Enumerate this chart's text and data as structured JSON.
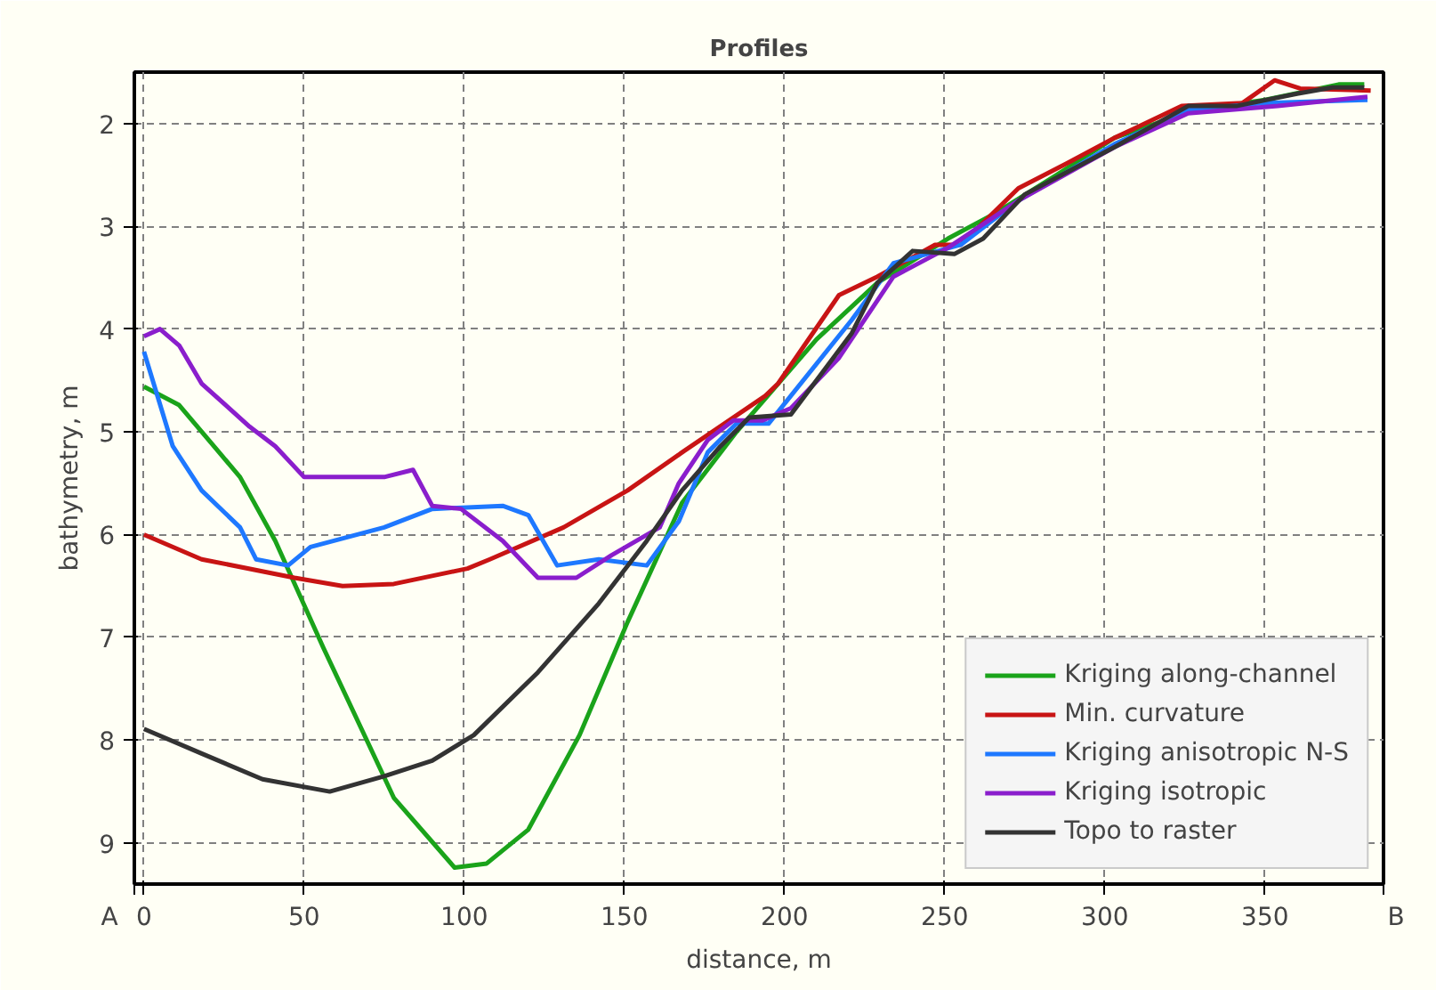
{
  "chart_data": {
    "type": "line",
    "title": "Profiles",
    "xlabel": "distance, m",
    "ylabel": "bathymetry, m",
    "annotations": [
      "A",
      "B"
    ],
    "xlim": [
      -3,
      387
    ],
    "ylim": [
      9.4,
      1.5
    ],
    "xticks": [
      0,
      50,
      100,
      150,
      200,
      250,
      300,
      350
    ],
    "yticks": [
      2,
      3,
      4,
      5,
      6,
      7,
      8,
      9
    ],
    "grid": true,
    "legend": "bottom right",
    "line_style": "solid",
    "series": [
      {
        "name": "Kriging along-channel",
        "color": "#1aa31a",
        "x": [
          0,
          11,
          30,
          41,
          56,
          78,
          97,
          107,
          120,
          136,
          151,
          168,
          185,
          210,
          229,
          251,
          266,
          285,
          303,
          328,
          350,
          373,
          381
        ],
        "values": [
          4.56,
          4.74,
          5.44,
          6.06,
          7.1,
          8.56,
          9.24,
          9.2,
          8.87,
          7.95,
          6.85,
          5.69,
          5.0,
          4.1,
          3.55,
          3.12,
          2.87,
          2.5,
          2.14,
          1.87,
          1.77,
          1.62,
          1.62
        ]
      },
      {
        "name": "Min. curvature",
        "color": "#c81414",
        "x": [
          0,
          18,
          47,
          62,
          78,
          101,
          108,
          131,
          151,
          168,
          194,
          198,
          217,
          229,
          247,
          255,
          273,
          288,
          303,
          324,
          343,
          353,
          361,
          383
        ],
        "values": [
          6.0,
          6.24,
          6.42,
          6.5,
          6.48,
          6.33,
          6.24,
          5.93,
          5.57,
          5.2,
          4.65,
          4.53,
          3.67,
          3.49,
          3.18,
          3.18,
          2.63,
          2.39,
          2.14,
          1.83,
          1.8,
          1.58,
          1.66,
          1.68
        ]
      },
      {
        "name": "Kriging anisotropic N-S",
        "color": "#1e78ff",
        "x": [
          0,
          9,
          18,
          30,
          35,
          45,
          52,
          75,
          90,
          112,
          120,
          129,
          142,
          157,
          167,
          176,
          185,
          195,
          221,
          234,
          255,
          273,
          303,
          326,
          350,
          382
        ],
        "values": [
          4.22,
          5.14,
          5.57,
          5.93,
          6.24,
          6.3,
          6.12,
          5.93,
          5.75,
          5.72,
          5.81,
          6.3,
          6.24,
          6.3,
          5.87,
          5.2,
          4.92,
          4.92,
          3.91,
          3.36,
          3.18,
          2.75,
          2.2,
          1.87,
          1.8,
          1.77
        ]
      },
      {
        "name": "Kriging isotropic",
        "color": "#8a1ecc",
        "x": [
          0,
          5,
          11,
          18,
          33,
          41,
          50,
          75,
          84,
          90,
          99,
          112,
          123,
          135,
          146,
          161,
          167,
          176,
          184,
          193,
          202,
          217,
          234,
          251,
          273,
          303,
          326,
          354,
          382
        ],
        "values": [
          4.07,
          4.0,
          4.16,
          4.53,
          4.95,
          5.14,
          5.44,
          5.44,
          5.37,
          5.72,
          5.75,
          6.06,
          6.42,
          6.42,
          6.2,
          5.93,
          5.5,
          5.08,
          4.89,
          4.89,
          4.77,
          4.28,
          3.49,
          3.21,
          2.75,
          2.23,
          1.9,
          1.83,
          1.74
        ]
      },
      {
        "name": "Topo to raster",
        "color": "#333333",
        "x": [
          0,
          18,
          37,
          58,
          75,
          90,
          103,
          123,
          142,
          157,
          168,
          180,
          189,
          202,
          221,
          229,
          240,
          253,
          262,
          275,
          303,
          326,
          341,
          360,
          371,
          381
        ],
        "values": [
          7.89,
          8.13,
          8.38,
          8.5,
          8.35,
          8.2,
          7.95,
          7.34,
          6.67,
          6.06,
          5.57,
          5.14,
          4.86,
          4.83,
          4.04,
          3.55,
          3.24,
          3.27,
          3.12,
          2.69,
          2.23,
          1.83,
          1.83,
          1.71,
          1.65,
          1.65
        ]
      }
    ]
  }
}
